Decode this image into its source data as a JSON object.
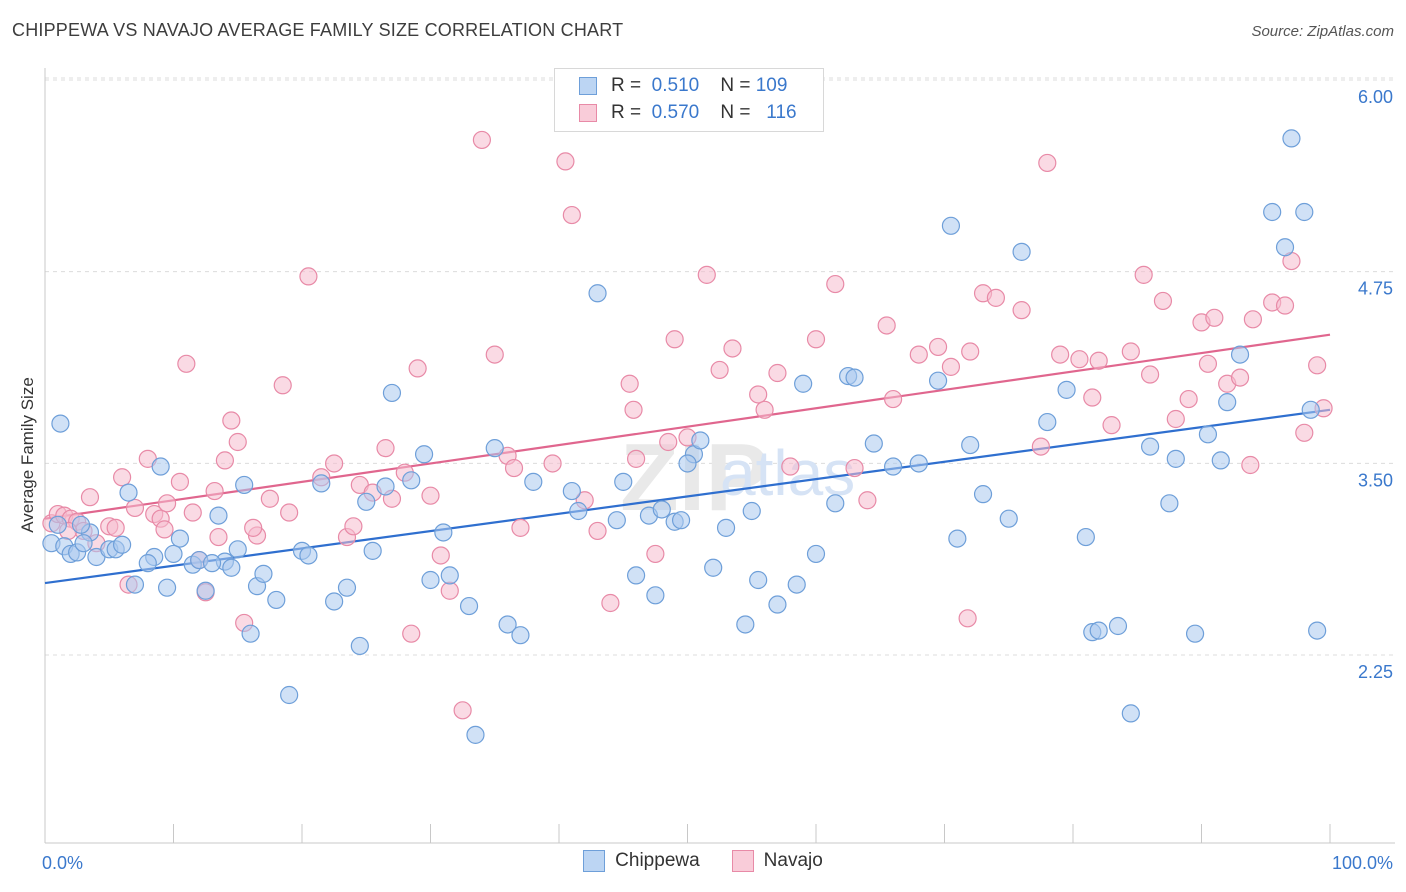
{
  "title": "CHIPPEWA VS NAVAJO AVERAGE FAMILY SIZE CORRELATION CHART",
  "source": "Source: ZipAtlas.com",
  "colors": {
    "chippewa_fill": "#a9c8ef",
    "chippewa_stroke": "#6e9fd9",
    "chippewa_line": "#2f6fcf",
    "navajo_fill": "#f6bccd",
    "navajo_stroke": "#e88aa7",
    "navajo_line": "#e0668e",
    "tick_label": "#3a78cc",
    "grid": "#dcdcdc"
  },
  "legend": {
    "rows": [
      {
        "r_label": "R =",
        "r_value": "0.510",
        "n_label": "N =",
        "n_value": "109"
      },
      {
        "r_label": "R =",
        "r_value": "0.570",
        "n_label": "N =",
        "n_value": "116"
      }
    ]
  },
  "bottom_legend": [
    "Chippewa",
    "Navajo"
  ],
  "chart_data": {
    "type": "scatter",
    "title": "CHIPPEWA VS NAVAJO AVERAGE FAMILY SIZE CORRELATION CHART",
    "xlabel": "",
    "ylabel": "Average Family Size",
    "xlim": [
      0,
      100
    ],
    "ylim": [
      1.0,
      6.15
    ],
    "x_tick_labels": [
      "0.0%",
      "100.0%"
    ],
    "y_ticks": [
      2.25,
      3.5,
      4.75,
      6.0
    ],
    "y_tick_labels": [
      "2.25",
      "3.50",
      "4.75",
      "6.00"
    ],
    "grid": true,
    "legend_position": "top-center",
    "watermark": "ZIPatlas",
    "series": [
      {
        "name": "Chippewa",
        "R": 0.51,
        "N": 109,
        "trend": {
          "x": [
            0,
            100
          ],
          "y": [
            2.83,
            3.96
          ]
        },
        "x": [
          0.5,
          1.0,
          1.5,
          2.0,
          2.5,
          3.5,
          4.0,
          5.0,
          5.5,
          6.5,
          7.0,
          8.5,
          9.0,
          9.5,
          10.5,
          11.5,
          12.0,
          12.5,
          13.5,
          14.0,
          14.5,
          15.0,
          16.0,
          16.5,
          17.0,
          18.0,
          19.0,
          20.0,
          20.5,
          21.5,
          22.5,
          23.5,
          24.5,
          25.5,
          26.5,
          27.0,
          28.5,
          29.5,
          30.0,
          31.0,
          31.5,
          33.0,
          33.5,
          35.0,
          36.0,
          37.0,
          38.0,
          41.0,
          41.5,
          43.0,
          44.5,
          46.0,
          47.0,
          48.0,
          49.0,
          49.5,
          50.5,
          51.0,
          52.0,
          53.0,
          54.5,
          55.5,
          57.0,
          58.5,
          59.0,
          60.0,
          61.5,
          62.5,
          63.0,
          64.5,
          66.0,
          68.0,
          69.5,
          70.5,
          71.0,
          72.0,
          73.0,
          75.0,
          76.0,
          78.0,
          79.5,
          81.0,
          81.5,
          82.0,
          83.5,
          84.5,
          86.0,
          87.5,
          88.0,
          89.5,
          90.5,
          91.5,
          92.0,
          93.0,
          95.5,
          96.5,
          97.0,
          98.0,
          98.5,
          99.0,
          1.2,
          3.0,
          6.0,
          8.0,
          10.0,
          13.0,
          15.5,
          25.0,
          45.0,
          47.5,
          50.0,
          55.0,
          2.8
        ],
        "y": [
          3.09,
          3.21,
          3.07,
          3.02,
          3.03,
          3.16,
          3.0,
          3.05,
          3.05,
          3.42,
          2.82,
          3.0,
          3.59,
          2.8,
          3.12,
          2.95,
          2.98,
          2.78,
          3.27,
          2.97,
          2.93,
          3.05,
          2.5,
          2.81,
          2.89,
          2.72,
          2.1,
          3.04,
          3.01,
          3.48,
          2.71,
          2.8,
          2.42,
          3.04,
          3.46,
          4.07,
          3.5,
          3.67,
          2.85,
          3.16,
          2.88,
          2.68,
          1.84,
          3.71,
          2.56,
          2.49,
          3.49,
          3.43,
          3.3,
          4.72,
          3.24,
          2.88,
          3.27,
          3.31,
          3.23,
          3.24,
          3.67,
          3.76,
          2.93,
          3.19,
          2.56,
          2.85,
          2.69,
          2.82,
          4.13,
          3.02,
          3.35,
          4.18,
          4.17,
          3.74,
          3.59,
          3.61,
          4.15,
          5.16,
          3.12,
          3.73,
          3.41,
          3.25,
          4.99,
          3.88,
          4.09,
          3.13,
          2.51,
          2.52,
          2.55,
          1.98,
          3.72,
          3.35,
          3.64,
          2.5,
          3.8,
          3.63,
          4.01,
          4.32,
          5.25,
          5.02,
          5.73,
          5.25,
          3.96,
          2.52,
          3.87,
          3.09,
          3.08,
          2.96,
          3.02,
          2.96,
          3.47,
          3.36,
          3.49,
          2.75,
          3.61,
          3.3,
          3.21
        ]
      },
      {
        "name": "Navajo",
        "R": 0.57,
        "N": 116,
        "trend": {
          "x": [
            0,
            100
          ],
          "y": [
            3.25,
            4.45
          ]
        },
        "x": [
          0.5,
          1.0,
          1.5,
          2.0,
          2.5,
          3.0,
          3.5,
          4.0,
          5.0,
          5.5,
          6.5,
          7.0,
          8.0,
          8.5,
          9.0,
          9.5,
          10.5,
          11.0,
          11.5,
          12.0,
          12.5,
          13.5,
          14.0,
          14.5,
          15.0,
          15.5,
          16.5,
          17.5,
          18.5,
          19.0,
          20.5,
          21.5,
          22.5,
          23.5,
          24.5,
          25.5,
          26.5,
          27.0,
          28.0,
          28.5,
          29.0,
          30.0,
          31.5,
          32.5,
          34.0,
          35.0,
          36.0,
          37.0,
          39.5,
          40.5,
          41.0,
          42.0,
          43.0,
          44.0,
          45.5,
          46.0,
          47.5,
          48.5,
          49.0,
          50.0,
          51.5,
          52.5,
          53.5,
          55.5,
          56.0,
          57.0,
          58.0,
          60.0,
          61.5,
          63.0,
          64.0,
          65.5,
          66.0,
          68.0,
          69.5,
          70.5,
          72.0,
          73.0,
          74.0,
          76.0,
          77.5,
          78.0,
          79.0,
          80.5,
          81.5,
          82.0,
          83.0,
          84.5,
          85.5,
          86.0,
          87.0,
          88.0,
          89.0,
          90.0,
          90.5,
          91.0,
          92.0,
          93.0,
          94.0,
          95.5,
          96.5,
          97.0,
          98.0,
          99.0,
          99.5,
          1.8,
          6.0,
          9.3,
          13.2,
          16.2,
          24.0,
          30.8,
          36.5,
          45.8,
          71.8,
          93.8
        ],
        "y": [
          3.22,
          3.28,
          3.27,
          3.25,
          3.23,
          3.17,
          3.39,
          3.09,
          3.2,
          3.19,
          2.82,
          3.32,
          3.64,
          3.28,
          3.25,
          3.35,
          3.49,
          4.26,
          3.29,
          2.98,
          2.77,
          3.13,
          3.63,
          3.89,
          3.75,
          2.57,
          3.14,
          3.38,
          4.12,
          3.29,
          4.83,
          3.52,
          3.61,
          3.13,
          3.47,
          3.42,
          3.71,
          3.38,
          3.55,
          2.5,
          4.23,
          3.4,
          2.78,
          2.0,
          5.72,
          4.32,
          3.66,
          3.19,
          3.61,
          5.58,
          5.23,
          3.37,
          3.17,
          2.7,
          4.13,
          3.64,
          3.02,
          3.75,
          4.42,
          3.78,
          4.84,
          4.22,
          4.36,
          4.06,
          3.96,
          4.2,
          3.59,
          4.42,
          4.78,
          3.58,
          3.37,
          4.51,
          4.03,
          4.32,
          4.37,
          4.24,
          4.34,
          4.72,
          4.69,
          4.61,
          3.72,
          5.57,
          4.32,
          4.29,
          4.04,
          4.28,
          3.86,
          4.34,
          4.84,
          4.19,
          4.67,
          3.9,
          4.03,
          4.53,
          4.26,
          4.56,
          4.13,
          4.17,
          4.55,
          4.66,
          4.64,
          4.93,
          3.81,
          4.25,
          3.97,
          3.17,
          3.52,
          3.18,
          3.43,
          3.19,
          3.2,
          3.01,
          3.58,
          3.96,
          2.6,
          3.6
        ]
      }
    ]
  }
}
